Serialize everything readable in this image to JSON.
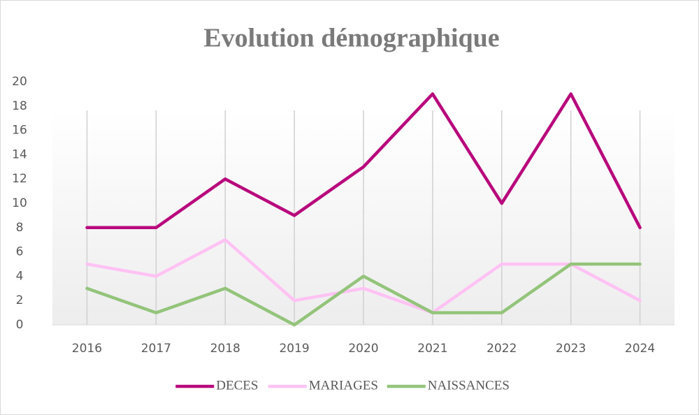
{
  "chart_data": {
    "type": "line",
    "title": "Evolution démographique",
    "categories": [
      "2016",
      "2017",
      "2018",
      "2019",
      "2020",
      "2021",
      "2022",
      "2023",
      "2024"
    ],
    "series": [
      {
        "name": "DECES",
        "color": "#b8097c",
        "values": [
          8,
          8,
          12,
          9,
          13,
          19,
          10,
          19,
          8
        ]
      },
      {
        "name": "MARIAGES",
        "color": "#ffc2f4",
        "values": [
          5,
          4,
          7,
          2,
          3,
          1,
          5,
          5,
          2
        ]
      },
      {
        "name": "NAISSANCES",
        "color": "#93c47a",
        "values": [
          3,
          1,
          3,
          0,
          4,
          1,
          1,
          5,
          5
        ]
      }
    ],
    "ylim": [
      0,
      20
    ],
    "yticks": [
      0,
      2,
      4,
      6,
      8,
      10,
      12,
      14,
      16,
      18,
      20
    ],
    "xgrid": true,
    "legend": "bottom"
  }
}
